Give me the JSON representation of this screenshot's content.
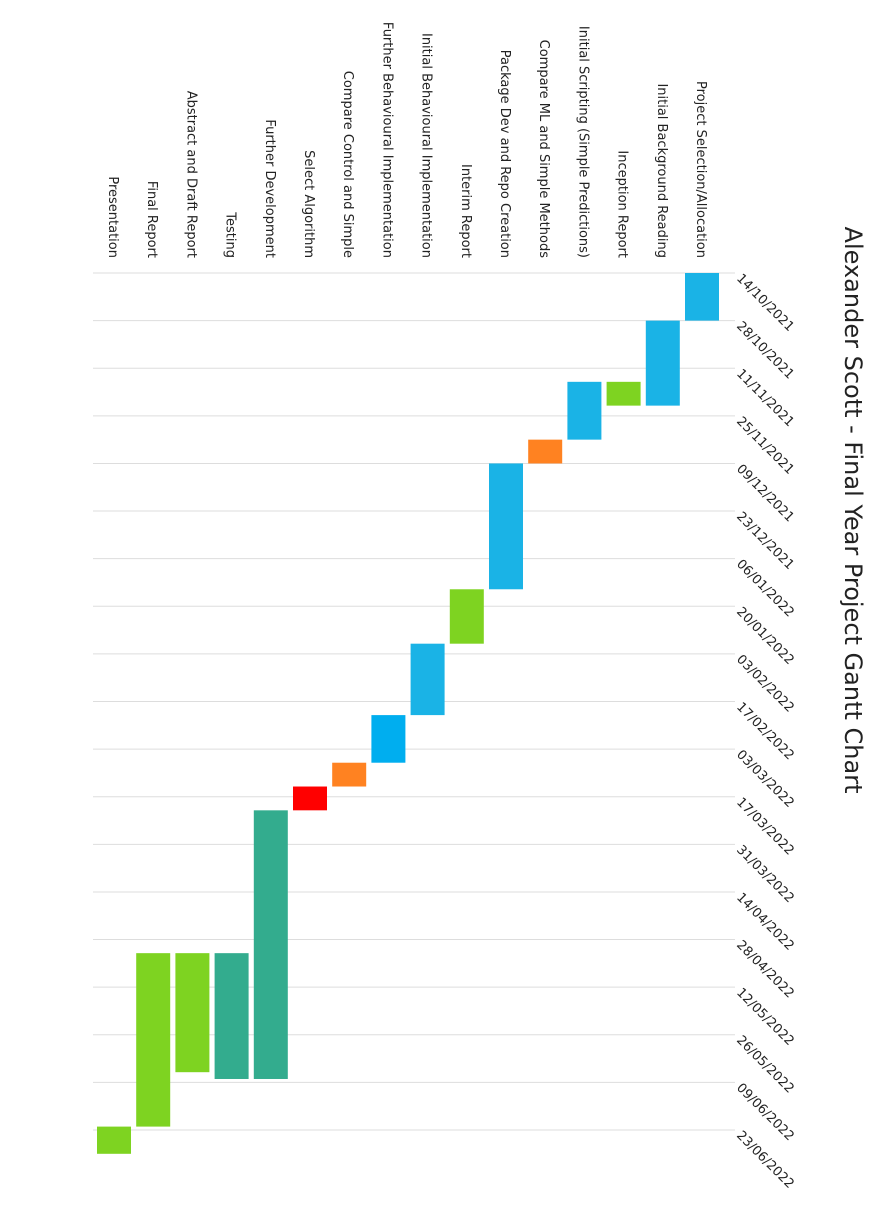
{
  "chart_data": {
    "type": "bar",
    "orientation": "gantt",
    "title": "Alexander Scott - Final Year Project Gantt Chart",
    "xlabel": "",
    "ylabel": "",
    "grid": true,
    "xlim": [
      "2021-10-14",
      "2022-06-23"
    ],
    "x_ticks": [
      "14/10/2021",
      "28/10/2021",
      "11/11/2021",
      "25/11/2021",
      "09/12/2021",
      "23/12/2021",
      "06/01/2022",
      "20/01/2022",
      "03/02/2022",
      "17/02/2022",
      "03/03/2022",
      "17/03/2022",
      "31/03/2022",
      "14/04/2022",
      "28/04/2022",
      "12/05/2022",
      "26/05/2022",
      "09/06/2022",
      "23/06/2022"
    ],
    "tasks": [
      {
        "name": "Project Selection/Allocation",
        "start": "2021-10-14",
        "end": "2021-10-28",
        "color": "#1AB3E6"
      },
      {
        "name": "Initial Background Reading",
        "start": "2021-10-28",
        "end": "2021-11-22",
        "color": "#1AB3E6"
      },
      {
        "name": "Inception Report",
        "start": "2021-11-15",
        "end": "2021-11-22",
        "color": "#7ED321"
      },
      {
        "name": "Initial Scripting (Simple Predictions)",
        "start": "2021-11-15",
        "end": "2021-12-02",
        "color": "#1AB3E6"
      },
      {
        "name": "Compare ML and Simple Methods",
        "start": "2021-12-02",
        "end": "2021-12-09",
        "color": "#FF8221"
      },
      {
        "name": "Package Dev and Repo Creation",
        "start": "2021-12-09",
        "end": "2022-01-15",
        "color": "#1AB3E6"
      },
      {
        "name": "Interim Report",
        "start": "2022-01-15",
        "end": "2022-01-31",
        "color": "#7ED321"
      },
      {
        "name": "Initial Behavioural Implementation",
        "start": "2022-01-31",
        "end": "2022-02-21",
        "color": "#1AB3E6"
      },
      {
        "name": "Further Behavioural Implementation",
        "start": "2022-02-21",
        "end": "2022-03-07",
        "color": "#00AEEF"
      },
      {
        "name": "Compare Control and Simple",
        "start": "2022-03-07",
        "end": "2022-03-14",
        "color": "#FF8221"
      },
      {
        "name": "Select Algorithm",
        "start": "2022-03-14",
        "end": "2022-03-21",
        "color": "#FF0000"
      },
      {
        "name": "Further Development",
        "start": "2022-03-21",
        "end": "2022-06-08",
        "color": "#33AC8E"
      },
      {
        "name": "Testing",
        "start": "2022-05-02",
        "end": "2022-06-08",
        "color": "#33AC8E"
      },
      {
        "name": "Abstract and Draft Report",
        "start": "2022-05-02",
        "end": "2022-06-06",
        "color": "#7ED321"
      },
      {
        "name": "Final Report",
        "start": "2022-05-02",
        "end": "2022-06-22",
        "color": "#7ED321"
      },
      {
        "name": "Presentation",
        "start": "2022-06-22",
        "end": "2022-06-30",
        "color": "#7ED321"
      }
    ]
  }
}
